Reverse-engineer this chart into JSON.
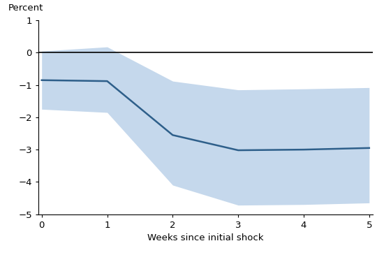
{
  "x": [
    0,
    1,
    2,
    3,
    4,
    5
  ],
  "y_center": [
    -0.85,
    -0.88,
    -2.55,
    -3.02,
    -3.0,
    -2.95
  ],
  "y_upper": [
    0.05,
    0.18,
    -0.88,
    -1.15,
    -1.12,
    -1.08
  ],
  "y_lower": [
    -1.75,
    -1.85,
    -4.1,
    -4.72,
    -4.7,
    -4.65
  ],
  "xlim": [
    -0.05,
    5.05
  ],
  "ylim": [
    -5,
    1
  ],
  "yticks": [
    1,
    0,
    -1,
    -2,
    -3,
    -4,
    -5
  ],
  "xticks": [
    0,
    1,
    2,
    3,
    4,
    5
  ],
  "xlabel": "Weeks since initial shock",
  "ylabel": "Percent",
  "line_color": "#2e5f8a",
  "fill_color": "#c5d8ec",
  "hline_color": "#000000",
  "line_width": 1.8,
  "fill_alpha": 1.0
}
